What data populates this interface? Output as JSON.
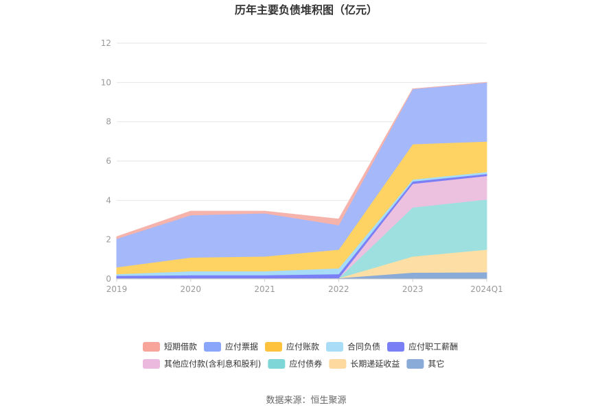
{
  "chart_data": {
    "type": "area",
    "stacked": true,
    "title": "历年主要负债堆积图（亿元）",
    "categories": [
      "2019",
      "2020",
      "2021",
      "2022",
      "2023",
      "2024Q1"
    ],
    "y_ticks": [
      "0",
      "2",
      "4",
      "6",
      "8",
      "10",
      "12"
    ],
    "ylim": [
      0,
      12
    ],
    "grid": true,
    "legend_position": "bottom",
    "series": [
      {
        "name": "其它",
        "color": "#8aaad8",
        "values": [
          0.05,
          0.05,
          0.05,
          0.05,
          0.33,
          0.35
        ]
      },
      {
        "name": "长期递延收益",
        "color": "#fddfa5",
        "values": [
          0.0,
          0.0,
          0.0,
          0.0,
          0.82,
          1.15
        ]
      },
      {
        "name": "应付债券",
        "color": "#9ee0df",
        "values": [
          0.0,
          0.0,
          0.0,
          0.0,
          2.5,
          2.55
        ]
      },
      {
        "name": "其他应付款(含利息和股利)",
        "color": "#ecc0df",
        "values": [
          0.0,
          0.0,
          0.0,
          0.0,
          1.2,
          1.2
        ]
      },
      {
        "name": "应付职工薪酬",
        "color": "#7b7ff5",
        "values": [
          0.12,
          0.15,
          0.15,
          0.2,
          0.12,
          0.1
        ]
      },
      {
        "name": "合同负债",
        "color": "#a6dcf7",
        "values": [
          0.08,
          0.2,
          0.2,
          0.3,
          0.1,
          0.1
        ]
      },
      {
        "name": "应付账款",
        "color": "#fed363",
        "values": [
          0.35,
          0.7,
          0.75,
          0.95,
          1.8,
          1.55
        ]
      },
      {
        "name": "应付票据",
        "color": "#a4b8fa",
        "values": [
          1.45,
          2.15,
          2.2,
          1.25,
          2.8,
          3.0
        ]
      },
      {
        "name": "短期借款",
        "color": "#f6b3ac",
        "values": [
          0.1,
          0.2,
          0.1,
          0.3,
          0.0,
          0.0
        ]
      }
    ],
    "legend_order": [
      "短期借款",
      "应付票据",
      "应付账款",
      "合同负债",
      "应付职工薪酬",
      "其他应付款(含利息和股利)",
      "应付债券",
      "长期递延收益",
      "其它"
    ],
    "legend_colors": {
      "短期借款": "#f7a59b",
      "应付票据": "#8aa6fb",
      "应付账款": "#fec23c",
      "合同负债": "#a9ddf7",
      "应付职工薪酬": "#7b7ff5",
      "其他应付款(含利息和股利)": "#ebb9dd",
      "应付债券": "#7fd6d6",
      "长期递延收益": "#fdd9a0",
      "其它": "#8aaad8"
    }
  },
  "source_text": "数据来源：恒生聚源"
}
